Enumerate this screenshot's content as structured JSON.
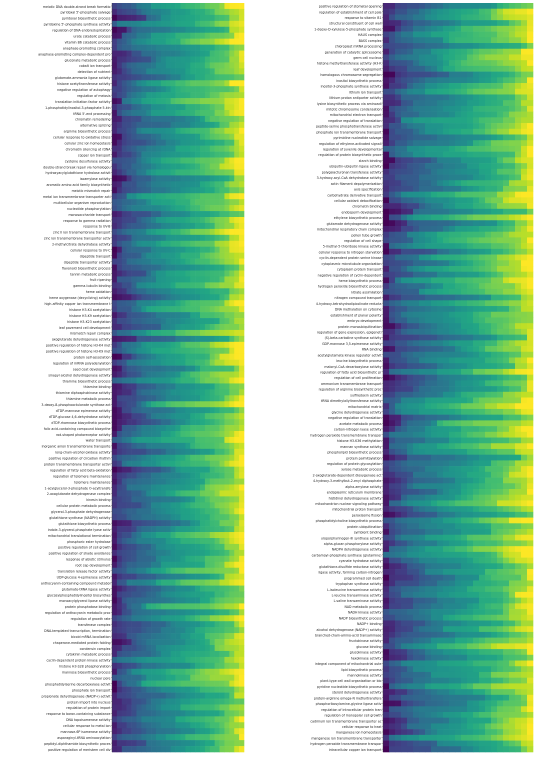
{
  "chart_data": [
    {
      "type": "heatmap",
      "panel": "left",
      "colormap": "viridis",
      "value_range": [
        0,
        1
      ],
      "n_columns": 27,
      "row_labels": [
        "meiotic DNA double-strand break formatio",
        "pyridoxal 5'-phosphate salvage",
        "pyridoxal biosynthetic process",
        "pyridoxine 5'-phosphate synthase activity",
        "regulation of DNA endoreduplication",
        "urate catabolic process",
        "vitamin B6 catabolic process",
        "anaphase-promoting complex",
        "anaphase-promoting complex-dependent pro",
        "gluconate metabolic process",
        "cobalt ion transport",
        "detection of nutrient",
        "glutamate-ammonia ligase activity",
        "histone acetyltransferase activity",
        "negative regulation of autophagy",
        "regulation of meiosis",
        "translation initiation factor activity",
        "1-phosphatidylinositol-3-phosphate 5-kin",
        "tRNA 5'-end processing",
        "chromatin remodeling",
        "alternative splicing",
        "arginine biosynthetic process",
        "cellular response to oxidative stress",
        "cellular zinc ion homeostasis",
        "chromatin silencing at rDNA",
        "copper ion transport",
        "cysteine desulfurase activity",
        "double-strand break repair via homologou",
        "hydroxyacylglutathione hydrolase activit",
        "isoamylase activity",
        "aromatic amino acid family biosynthetic",
        "meiotic mismatch repair",
        "metal ion transmembrane transporter acti",
        "multicellular organism reproduction",
        "nucleotide phosphorylation",
        "monosaccharide transport",
        "response to gamma radiation",
        "response to UV-B",
        "zinc II ion transmembrane transport",
        "zinc ion transmembrane transporter activ",
        "2-methylcitrate dehydratase activity",
        "cellular response to UV-C",
        "dipeptide transport",
        "dipeptide transporter activity",
        "flavonoid biosynthetic process",
        "tannin metabolic process",
        "fruit ripening",
        "gamma-tubulin binding",
        "heme oxidation",
        "heme oxygenase (decyclizing) activity",
        "high-affinity copper ion transmembrane t",
        "histone H3-K4 acetylation",
        "histone H3-K9 acetylation",
        "histone H3-K23 acetylation",
        "leaf pavement cell development",
        "mismatch repair complex",
        "oxoglutarate dehydrogenase activity",
        "positive regulation of histone H3-K4 met",
        "positive regulation of histone H3-K9 met",
        "protein self-association",
        "regulation of mRNA polyadenylation",
        "seed coat development",
        "sinapyl alcohol dehydrogenase activity",
        "thiamine biosynthetic process",
        "thiamine binding",
        "thiamine diphosphokinase activity",
        "thiamine metabolic process",
        "3-deoxy-8-phosphooctulonate synthase act",
        "dTDP-mannose epimerase activity",
        "dTDP-glucose 4,6-dehydratase activity",
        "dTDP-rhamnose biosynthetic process",
        "folic acid-containing compound biosynthe",
        "rod-shaped photoreceptor activity",
        "water transport",
        "inorganic anion transmembrane transporte",
        "long-chain-alcohol oxidase activity",
        "positive regulation of circadian rhythm",
        "protein transmembrane transporter activi",
        "regulation of fatty acid beta-oxidation",
        "regulation of telomere maintenance",
        "telomere maintenance",
        "1-acylglycerol-3-phosphate O-acyltransfe",
        "2-oxoglutarate dehydrogenase complex",
        "kinesin binding",
        "cellular protein metabolic process",
        "glycerol-3-phosphate dehydrogenase",
        "glutathione synthase (NADPH) activity",
        "glutathione biosynthetic process",
        "indole-3-glycerol-phosphate lyase activ",
        "mitochondrial translational termination",
        "phosphoric ester hydrolase",
        "positive regulation of cell growth",
        "positive regulation of shade avoidance",
        "response of abiotic stimulus",
        "root cap development",
        "translation release factor activity",
        "UDP-glucose 4-epimerase activity",
        "anthocyanin-containing compound metabol",
        "glutamate-tRNA ligase activity",
        "glycosylphosphatidylinositol biosynthes",
        "monoacylglycerol lipase activity",
        "protein phosphatase binding",
        "regulation of anthocyanin metabolic proc",
        "regulation of growth rate",
        "transferase complex",
        "DNA-templated transcription, termination",
        "bicoid mRNA localization",
        "chaperone-mediated protein folding",
        "condensin complex",
        "cytokinin metabolic process",
        "cyclin-dependent protein kinase activity",
        "histone H3-S28 phosphorylation",
        "mannose biosynthetic process",
        "nuclear pore",
        "phosphatidylserine decarboxylase activit",
        "phosphate ion transport",
        "propionate dehydrogenase (NADP+) activit",
        "protein import into nucleus",
        "regulation of protein import",
        "response to boron-containing substance",
        "DNA topoisomerase activity",
        "cellular response to metal ion",
        "mannose-6P isomerase activity",
        "asparaginyl-tRNA aminoacylation",
        "peptidyl-diphthamide biosynthetic proces",
        "positive regulation of meristem cell div"
      ]
    },
    {
      "type": "heatmap",
      "panel": "right",
      "colormap": "viridis",
      "value_range": [
        0,
        1
      ],
      "n_columns": 25,
      "row_labels": [
        "positive regulation of stomatal opening",
        "regulation of establishment of cell pola",
        "response to vitamin B1",
        "structural constituent of cell wall",
        "1-deoxy-D-xylulose-5-phosphate synthase",
        "HAUS complex",
        "BASS complex",
        "chloroplast mRNA processing",
        "generation of catalytic spliceosome",
        "germ cell nucleus",
        "histone methyltransferase activity (H3-K",
        "leaf development",
        "homologous chromosome segregation",
        "inositol biosynthetic process",
        "inositol-3-phosphate synthase activity",
        "lithium ion transport",
        "lithium proton antiporter activity",
        "lysine biosynthetic process via aminoadi",
        "mitotic chromosome condensation",
        "mitochondrial electron transport",
        "negative regulation of translation",
        "peptide-serine phosphotransferase activi",
        "phosphate ion transmembrane transport",
        "pyrimidine nucleotide salvage",
        "regulation of ethylene-activated signali",
        "regulation of juvenile developmental",
        "regulation of protein biosynthetic proce",
        "starch binding",
        "ubiquitin-ubiquitin ligase activity",
        "polygalacturonan transferase activity",
        "3-hydroxy-acyl-CoA dehydratase activity",
        "actin filament depolymerization",
        "axis specification",
        "carbohydrate derivative transport",
        "cellular oxidant detoxification",
        "chromatin binding",
        "endosperm development",
        "ethylene biosynthetic process",
        "glutamate dehydrogenase activity",
        "mitochondrial respiratory chain complex",
        "pollen tube growth",
        "regulation of cell shape",
        "5-methyl-5-thioribose kinase activity",
        "cellular response to nitrogen starvation",
        "cyclin-dependent protein serine kinase",
        "cytoplasmic microtubule organization",
        "cytoplasm protein transport",
        "negative regulation of cyclin-dependent",
        "heme biosynthetic process",
        "hydrogen peroxide biosynthetic process",
        "nitrate assimilation",
        "nitrogen compound transport",
        "4-hydroxy-tetrahydrodipicolinate reducta",
        "DNA methylation on cytosine",
        "establishment of planar polarity",
        "embryo development",
        "protein monoubiquitination",
        "regulation of gene expression, epigeneti",
        "(S)-beta-carboline synthase activity",
        "GDP-mannose 3,5-epimerase activity",
        "RNA binding",
        "acetylglutamate kinase regulator activit",
        "leucine biosynthetic process",
        "malonyl-CoA decarboxylase activity",
        "regulation of fatty acid biosynthetic pr",
        "regulation of cell proliferation",
        "ammonium transmembrane transport",
        "regulation of arginine biosynthetic proc",
        "sulfiredoxin activity",
        "tRNA dimethylallyltransferase activity",
        "mitochondrial matrix",
        "glycine dehydrogenase activity",
        "negative regulation of translation",
        "acetate metabolic process",
        "carbon-nitrogen lyase activity",
        "hydrogen peroxide transmembrane transpor",
        "histone H3-K36 methylation",
        "mannan synthase activity",
        "phospholipid biosynthetic process",
        "protein palmitoylation",
        "regulation of protein glycosylation",
        "xylose metabolic process",
        "2-oxoglutarate-dependent dioxygenase act",
        "4-hydroxy-3-methylbut-2-enyl diphosphate",
        "alpha-amylase activity",
        "endoplasmic reticulum membrane",
        "histidinol dehydrogenase activity",
        "mitochondrion nuclear signaling pathway",
        "mitochondrial proton transport",
        "peroxisome fission",
        "phosphatidylcholine biosynthetic process",
        "protein ubiquitination",
        "symbiont binding",
        "uroporphyrinogen-III synthase activity",
        "alpha-glucan phosphorylase activity",
        "NADPH dehydrogenase activity",
        "carbamoyl-phosphate synthase (glutamine)",
        "cyanate hydratase activity",
        "glutathione-disulfide reductase activity",
        "ligase activity, forming carbon-nitrogen",
        "programmed cell death",
        "tryptophan synthase activity",
        "L-isoleucine transaminase activity",
        "L-leucine transaminase activity",
        "L-valine transaminase activity",
        "NAD metabolic process",
        "NADH kinase activity",
        "NADP biosynthetic process",
        "NADP+ binding",
        "alcohol dehydrogenase (NADP+) activity",
        "branched-chain-amino-acid transaminase",
        "fructokinase activity",
        "glucose binding",
        "glucokinase activity",
        "hexokinase activity",
        "integral component of mitochondrial oute",
        "lipid biosynthetic process",
        "mannokinase activity",
        "plant-type cell wall organization or bio",
        "pyridine nucleotide biosynthetic process",
        "steroid dehydrogenase activity",
        "protein-arginine omega-N methyltransfera",
        "phosphoribosylamine-glycine ligase activ",
        "regulation of intracellular protein tran",
        "regulation of monopolar cell growth",
        "cadmium ion transmembrane transporter ac",
        "cellular response to heat",
        "manganese ion homeostasis",
        "manganese ion transmembrane transporter",
        "hydrogen peroxide transmembrane transpor",
        "intracellular copper ion transport"
      ]
    }
  ]
}
